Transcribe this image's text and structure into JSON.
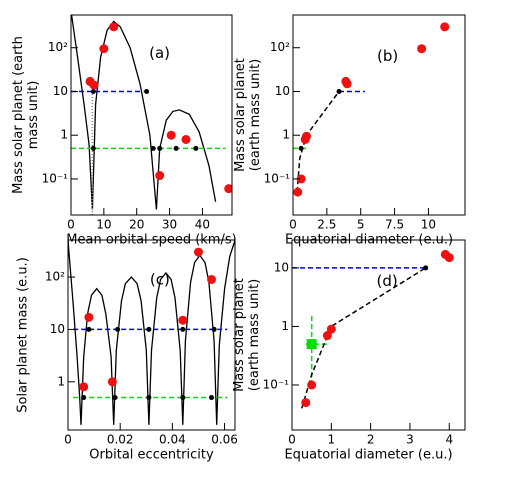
{
  "chart_data": [
    {
      "type": "scatter",
      "annotation": "(a)",
      "x_label": "Mean orbital speed (km/s)",
      "y_label": [
        "Mass solar planet (earth",
        "mass unit)"
      ],
      "xlim": [
        0,
        49
      ],
      "xticks": [
        0,
        10,
        20,
        30,
        40
      ],
      "ylim": [
        0.015,
        560
      ],
      "log_y": true,
      "yticks": [
        {
          "value": 0.1,
          "label": "10⁻¹"
        },
        1,
        10,
        {
          "value": 100,
          "label": "10²"
        }
      ],
      "series": [
        {
          "style": "line",
          "color": "#000000",
          "x": [
            0,
            2,
            4,
            5.5,
            6.5,
            null,
            6.5,
            7.5,
            9,
            11,
            13,
            15,
            18,
            21,
            24,
            26,
            null,
            26,
            27,
            29,
            31,
            33,
            36,
            39,
            42,
            44
          ],
          "values": [
            700,
            60,
            5,
            0.6,
            0.02,
            null,
            0.02,
            5,
            60,
            250,
            400,
            300,
            100,
            15,
            1,
            0.02,
            null,
            0.02,
            0.5,
            2.2,
            3.5,
            3.8,
            3,
            1.2,
            0.2,
            0.03
          ]
        },
        {
          "style": "dotted",
          "color": "#888888",
          "x": [
            6.5,
            6.5
          ],
          "values": [
            0.015,
            10
          ]
        },
        {
          "style": "dashed",
          "color": "#0000dd",
          "x": [
            0,
            22
          ],
          "values": [
            10,
            10
          ]
        },
        {
          "style": "dashed",
          "color": "#00dd00",
          "x": [
            0,
            47
          ],
          "values": [
            0.5,
            0.5
          ]
        },
        {
          "style": "dots",
          "color": "#000000",
          "x": [
            6.8,
            23,
            6.8,
            25,
            27,
            32,
            38
          ],
          "values": [
            10,
            10,
            0.5,
            0.5,
            0.5,
            0.5,
            0.5
          ]
        },
        {
          "style": "points",
          "color": "#ee1111",
          "x": [
            5.8,
            7,
            10,
            13,
            27,
            30.5,
            35,
            48
          ],
          "values": [
            17,
            14,
            95,
            300,
            0.12,
            1,
            0.8,
            0.06
          ]
        }
      ]
    },
    {
      "type": "scatter",
      "annotation": "(b)",
      "x_label": "Equatorial diameter (e.u.)",
      "y_label": [
        "Mass solar planet",
        "(earth mass unit)"
      ],
      "xlim": [
        0,
        12.7
      ],
      "xticks": [
        0,
        2.5,
        5,
        7.5,
        10
      ],
      "ylim": [
        0.015,
        560
      ],
      "log_y": true,
      "yticks": [
        {
          "value": 0.1,
          "label": "10⁻¹"
        },
        1,
        10,
        {
          "value": 100,
          "label": "10²"
        }
      ],
      "series": [
        {
          "style": "dashed",
          "color": "#0000dd",
          "x": [
            3.4,
            5.3
          ],
          "values": [
            10,
            10
          ]
        },
        {
          "style": "dashed",
          "color": "#00dd00",
          "x": [
            0,
            1
          ],
          "values": [
            0.5,
            0.5
          ]
        },
        {
          "style": "dashed",
          "color": "#000000",
          "x": [
            0.3,
            0.5,
            1,
            3.4
          ],
          "values": [
            0.05,
            0.3,
            1,
            10
          ]
        },
        {
          "style": "dots",
          "color": "#000000",
          "x": [
            3.4,
            0.6
          ],
          "values": [
            10,
            0.5
          ]
        },
        {
          "style": "points",
          "color": "#ee1111",
          "x": [
            0.35,
            0.6,
            0.9,
            1,
            3.9,
            4,
            9.5,
            11.2
          ],
          "values": [
            0.05,
            0.1,
            0.8,
            0.95,
            17,
            15,
            95,
            300
          ]
        }
      ]
    },
    {
      "type": "scatter",
      "annotation": "(c)",
      "x_label": "Orbital eccentricity",
      "y_label": [
        "Solar planet mass (e.u.)"
      ],
      "xlim": [
        0,
        0.064
      ],
      "xticks": [
        0,
        0.02,
        0.04,
        0.06
      ],
      "ylim": [
        0.12,
        510
      ],
      "log_y": true,
      "yticks": [
        1,
        10,
        {
          "value": 100,
          "label": "10²"
        }
      ],
      "series": [
        {
          "style": "line",
          "color": "#000000",
          "x": [
            0,
            0.002,
            0.0035,
            0.0045,
            0.005,
            null,
            0.005,
            0.006,
            0.0075,
            0.009,
            0.011,
            0.013,
            0.0145,
            0.0165,
            0.0175,
            null,
            0.0175,
            0.0185,
            0.0205,
            0.022,
            0.0243,
            0.0265,
            0.028,
            0.03,
            0.031,
            null,
            0.031,
            0.032,
            0.034,
            0.0355,
            0.0375,
            0.0395,
            0.041,
            0.043,
            0.044,
            null,
            0.044,
            0.045,
            0.047,
            0.0485,
            0.0505,
            0.0525,
            0.054,
            0.056,
            0.057,
            null,
            0.057,
            0.058,
            0.06,
            0.062,
            0.064
          ],
          "values": [
            500,
            30,
            3,
            0.5,
            0.15,
            null,
            0.15,
            3,
            20,
            45,
            60,
            45,
            20,
            3,
            0.15,
            null,
            0.15,
            4,
            35,
            75,
            100,
            75,
            35,
            4,
            0.15,
            null,
            0.15,
            4,
            40,
            90,
            120,
            90,
            40,
            4,
            0.15,
            null,
            0.15,
            6,
            80,
            190,
            260,
            190,
            80,
            6,
            0.15,
            null,
            0.15,
            5,
            60,
            250,
            500
          ]
        },
        {
          "style": "dashed",
          "color": "#0000dd",
          "x": [
            0.002,
            0.061
          ],
          "values": [
            10,
            10
          ]
        },
        {
          "style": "dashed",
          "color": "#00dd00",
          "x": [
            0.002,
            0.061
          ],
          "values": [
            0.5,
            0.5
          ]
        },
        {
          "style": "dots",
          "color": "#000000",
          "x": [
            0.008,
            0.019,
            0.031,
            0.044,
            0.056,
            0.006,
            0.018,
            0.031,
            0.044,
            0.055
          ],
          "values": [
            10,
            10,
            10,
            10,
            10,
            0.5,
            0.5,
            0.5,
            0.5,
            0.5
          ]
        },
        {
          "style": "points",
          "color": "#ee1111",
          "x": [
            0.006,
            0.008,
            0.017,
            0.044,
            0.05,
            0.055
          ],
          "values": [
            0.8,
            17,
            1,
            15,
            300,
            90
          ]
        }
      ]
    },
    {
      "type": "scatter",
      "annotation": "(d)",
      "x_label": "Equatorial diameter (e.u.)",
      "y_label": [
        "Mass solar planet",
        "(earth mass unit)"
      ],
      "xlim": [
        0,
        4.4
      ],
      "xticks": [
        0,
        1,
        2,
        3,
        4
      ],
      "ylim": [
        0.017,
        30
      ],
      "log_y": true,
      "yticks": [
        {
          "value": 0.1,
          "label": "10⁻¹"
        },
        1,
        10
      ],
      "series": [
        {
          "style": "dashed",
          "color": "#0000dd",
          "x": [
            0,
            3.4
          ],
          "values": [
            10,
            10
          ]
        },
        {
          "style": "dashed",
          "color": "#00dd00",
          "x": [
            0.5,
            0.5
          ],
          "values": [
            0.1,
            1.5
          ]
        },
        {
          "style": "dashed",
          "color": "#00dd00",
          "x": [
            0.35,
            0.9
          ],
          "values": [
            0.5,
            0.5
          ]
        },
        {
          "style": "dashed",
          "color": "#000000",
          "x": [
            0.25,
            0.5,
            1,
            3.4
          ],
          "values": [
            0.04,
            0.15,
            1,
            10
          ]
        },
        {
          "style": "dots",
          "color": "#000000",
          "x": [
            3.4
          ],
          "values": [
            10
          ]
        },
        {
          "style": "square",
          "color": "#00dd00",
          "x": [
            0.5
          ],
          "values": [
            0.5
          ]
        },
        {
          "style": "points",
          "color": "#ee1111",
          "x": [
            0.35,
            0.5,
            0.9,
            1,
            3.9,
            4
          ],
          "values": [
            0.05,
            0.1,
            0.7,
            0.9,
            17,
            15
          ]
        }
      ]
    }
  ]
}
